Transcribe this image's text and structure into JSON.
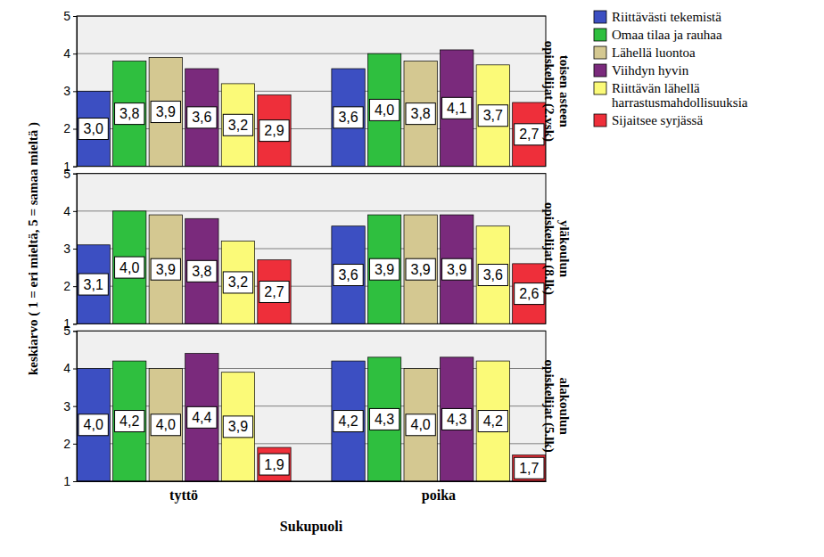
{
  "chart_data": [
    {
      "type": "bar",
      "title": "toisen asteen opiskelijat (2.vsk)",
      "tick_labels": "y",
      "legend": "upper right",
      "data_labels": true,
      "grid": true,
      "ylim": [
        1,
        5
      ],
      "yticks": [
        1,
        2,
        3,
        4,
        5
      ],
      "series": [
        {
          "name": "Riittävästi tekemistä",
          "color": "#3c4fc2",
          "values": [
            3.0,
            3.6
          ],
          "value_labels": [
            "3,0",
            "3,6"
          ]
        },
        {
          "name": "Omaa tilaa ja rauhaa",
          "color": "#2fbf3f",
          "values": [
            3.8,
            4.0
          ],
          "value_labels": [
            "3,8",
            "4,0"
          ]
        },
        {
          "name": "Lähellä luontoa",
          "color": "#d4c891",
          "values": [
            3.9,
            3.8
          ],
          "value_labels": [
            "3,9",
            "3,8"
          ]
        },
        {
          "name": "Viihdyn hyvin",
          "color": "#7a2a7c",
          "values": [
            3.6,
            4.1
          ],
          "value_labels": [
            "3,6",
            "4,1"
          ]
        },
        {
          "name": "Riittävän lähellä harrastusmahdollisuuksia",
          "color": "#fbfa78",
          "values": [
            3.2,
            3.7
          ],
          "value_labels": [
            "3,2",
            "3,7"
          ]
        },
        {
          "name": "Sijaitsee syrjässä",
          "color": "#ee2f3a",
          "values": [
            2.9,
            2.7
          ],
          "value_labels": [
            "2,9",
            "2,7"
          ]
        }
      ]
    },
    {
      "type": "bar",
      "title": "yläkoulun opiskelijat (8.lk)",
      "tick_labels": "y",
      "data_labels": true,
      "grid": true,
      "y_label": "keskiarvo ( 1 = eri mieltä, 5 = samaa mieltä )",
      "ylim": [
        1,
        5
      ],
      "yticks": [
        1,
        2,
        3,
        4,
        5
      ],
      "series": [
        {
          "color": "#3c4fc2",
          "values": [
            3.1,
            3.6
          ],
          "value_labels": [
            "3,1",
            "3,6"
          ]
        },
        {
          "color": "#2fbf3f",
          "values": [
            4.0,
            3.9
          ],
          "value_labels": [
            "4,0",
            "3,9"
          ]
        },
        {
          "color": "#d4c891",
          "values": [
            3.9,
            3.9
          ],
          "value_labels": [
            "3,9",
            "3,9"
          ]
        },
        {
          "color": "#7a2a7c",
          "values": [
            3.8,
            3.9
          ],
          "value_labels": [
            "3,8",
            "3,9"
          ]
        },
        {
          "color": "#fbfa78",
          "values": [
            3.2,
            3.6
          ],
          "value_labels": [
            "3,2",
            "3,6"
          ]
        },
        {
          "color": "#ee2f3a",
          "values": [
            2.7,
            2.6
          ],
          "value_labels": [
            "2,7",
            "2,6"
          ]
        }
      ]
    },
    {
      "type": "bar",
      "title": "alakoulun opiskelijat (5.lk)",
      "data_labels": true,
      "grid": true,
      "x_label": "Sukupuoli",
      "categories": [
        "tyttö",
        "poika"
      ],
      "ylim": [
        1,
        5
      ],
      "yticks": [
        1,
        2,
        3,
        4,
        5
      ],
      "series": [
        {
          "color": "#3c4fc2",
          "values": [
            4.0,
            4.2
          ],
          "value_labels": [
            "4,0",
            "4,2"
          ]
        },
        {
          "color": "#2fbf3f",
          "values": [
            4.2,
            4.3
          ],
          "value_labels": [
            "4,2",
            "4,3"
          ]
        },
        {
          "color": "#d4c891",
          "values": [
            4.0,
            4.0
          ],
          "value_labels": [
            "4,0",
            "4,0"
          ]
        },
        {
          "color": "#7a2a7c",
          "values": [
            4.4,
            4.3
          ],
          "value_labels": [
            "4,4",
            "4,3"
          ]
        },
        {
          "color": "#fbfa78",
          "values": [
            3.9,
            4.2
          ],
          "value_labels": [
            "3,9",
            "4,2"
          ]
        },
        {
          "color": "#ee2f3a",
          "values": [
            1.9,
            1.7
          ],
          "value_labels": [
            "1,9",
            "1,7"
          ]
        }
      ]
    }
  ]
}
